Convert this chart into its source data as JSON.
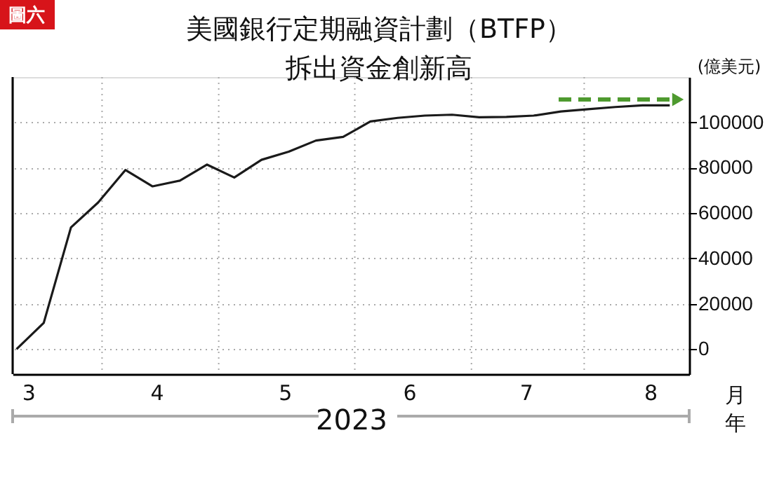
{
  "chart_data": {
    "type": "line",
    "title": "美國銀行定期融資計劃（BTFP）",
    "subtitle": "拆出資金創新高",
    "xlabel": "2023",
    "ylabel": "(億美元)",
    "annotations": [
      "圖六",
      "月",
      "年"
    ],
    "x": [
      "2023-03-08",
      "2023-03-15",
      "2023-03-22",
      "2023-03-29",
      "2023-04-05",
      "2023-04-12",
      "2023-04-19",
      "2023-04-26",
      "2023-05-03",
      "2023-05-10",
      "2023-05-17",
      "2023-05-24",
      "2023-05-31",
      "2023-06-07",
      "2023-06-14",
      "2023-06-21",
      "2023-06-28",
      "2023-07-05",
      "2023-07-12",
      "2023-07-19",
      "2023-07-26",
      "2023-08-02",
      "2023-08-09",
      "2023-08-16",
      "2023-08-23"
    ],
    "series": [
      {
        "color": "#1a1a1a",
        "values": [
          0,
          11600,
          53700,
          64700,
          79000,
          71800,
          74300,
          81400,
          75700,
          83500,
          87100,
          92000,
          93600,
          100400,
          102000,
          103000,
          103400,
          102300,
          102400,
          103000,
          104800,
          105800,
          106800,
          107500,
          107500
        ]
      }
    ],
    "xlim": [
      "2023-03-07",
      "2023-08-28"
    ],
    "xticks": [
      {
        "value": "2023-03-11",
        "label": "3"
      },
      {
        "value": "2023-03-30",
        "label": null
      },
      {
        "value": "2023-04-13",
        "label": "4"
      },
      {
        "value": "2023-04-29",
        "label": null
      },
      {
        "value": "2023-05-16",
        "label": "5"
      },
      {
        "value": "2023-06-03",
        "label": null
      },
      {
        "value": "2023-06-17",
        "label": "6"
      },
      {
        "value": "2023-07-03",
        "label": null
      },
      {
        "value": "2023-07-17",
        "label": "7"
      },
      {
        "value": "2023-08-01",
        "label": null
      },
      {
        "value": "2023-08-18",
        "label": "8"
      }
    ],
    "ylim": [
      -11000,
      120000
    ],
    "yticks": [
      0,
      20000,
      40000,
      60000,
      80000,
      100000
    ],
    "grid": true,
    "marker": "none",
    "line_style": "solid"
  }
}
